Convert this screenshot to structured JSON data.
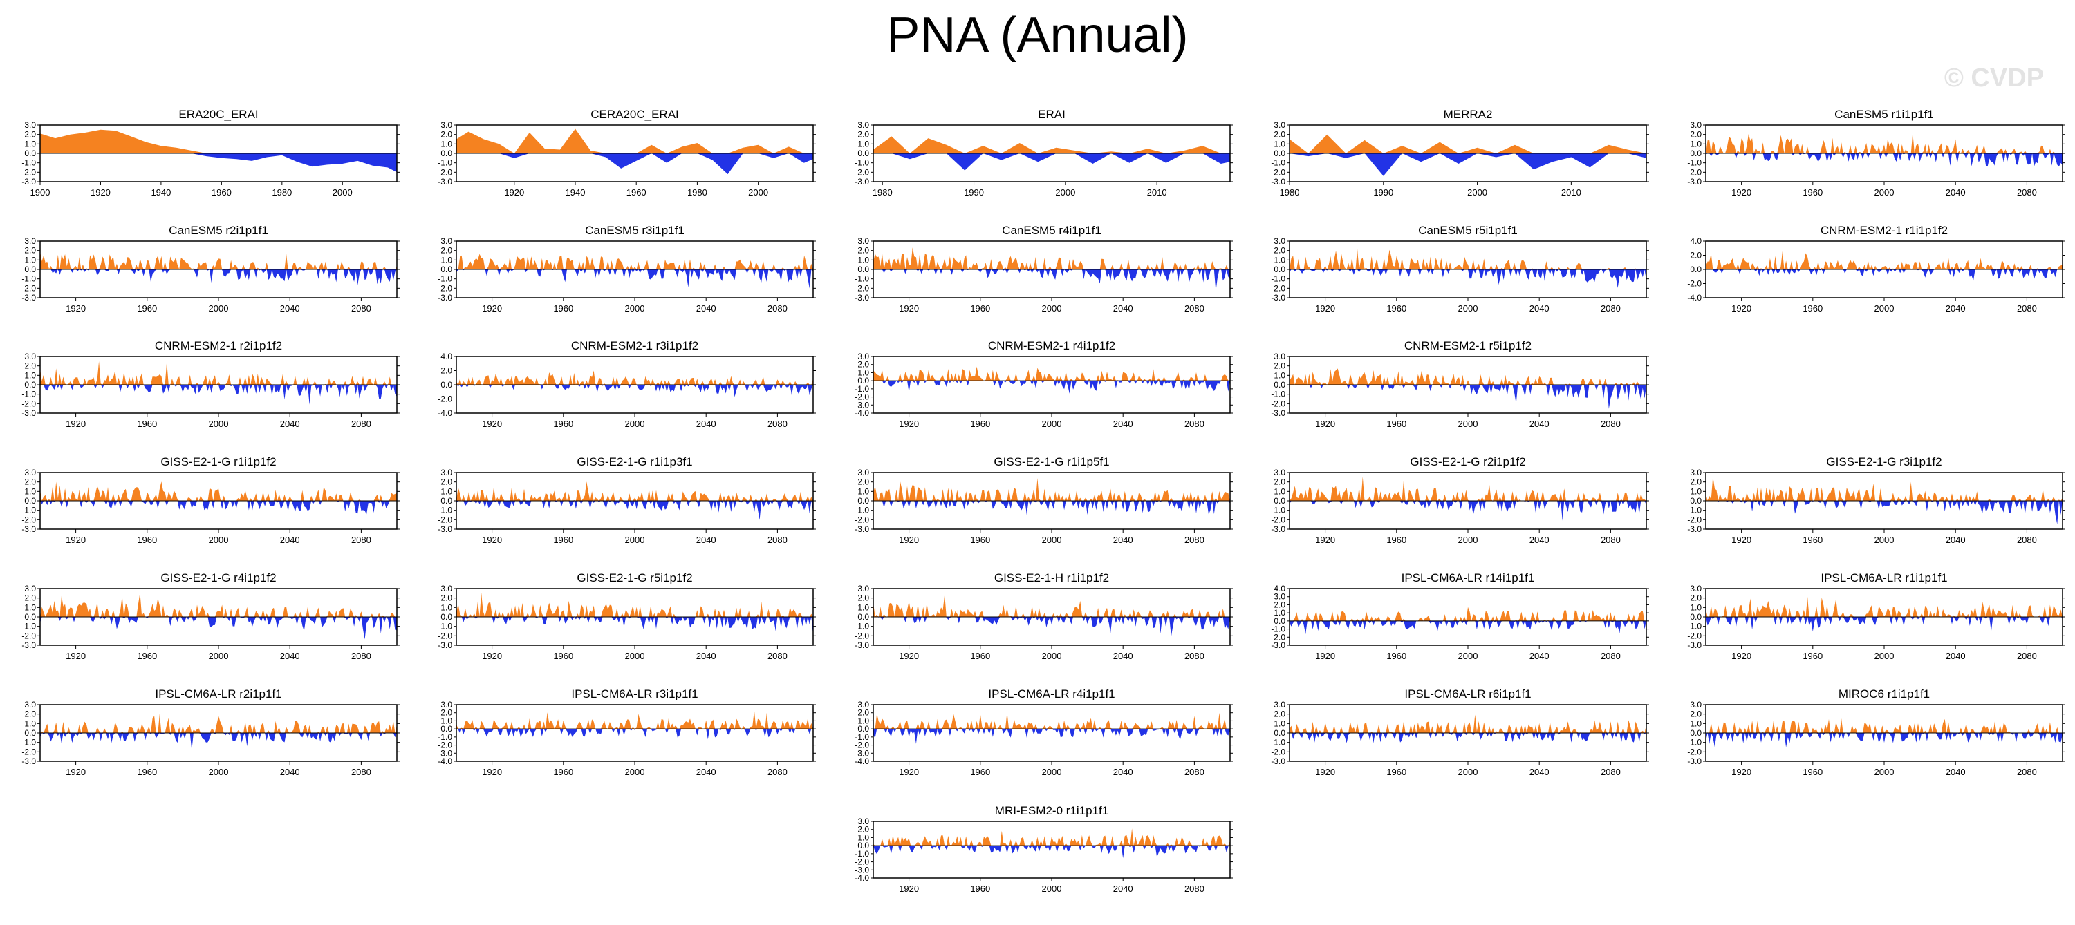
{
  "page": {
    "title": "PNA (Annual)",
    "watermark": "© CVDP"
  },
  "colors": {
    "positive": "#f58220",
    "negative": "#2233e6"
  },
  "chart_data": [
    {
      "type": "area",
      "title": "ERA20C_ERAI",
      "x_range": [
        1900,
        2018
      ],
      "ylim": [
        -3,
        3
      ],
      "yticks": [
        "3.0",
        "2.0",
        "1.0",
        "0.0",
        "-1.0",
        "-2.0",
        "-3.0"
      ],
      "xticks": [
        "1900",
        "1920",
        "1940",
        "1960",
        "1980",
        "2000"
      ],
      "x": [
        1900,
        1905,
        1910,
        1915,
        1920,
        1925,
        1930,
        1935,
        1940,
        1945,
        1950,
        1955,
        1960,
        1965,
        1970,
        1975,
        1980,
        1985,
        1990,
        1995,
        2000,
        2005,
        2010,
        2015,
        2018
      ],
      "values": [
        2.1,
        1.6,
        2.0,
        2.2,
        2.5,
        2.4,
        1.8,
        1.2,
        0.8,
        0.6,
        0.3,
        -0.3,
        -0.5,
        -0.6,
        -0.8,
        -0.4,
        -0.2,
        -0.9,
        -1.4,
        -1.2,
        -1.1,
        -0.8,
        -1.3,
        -1.5,
        -2.0
      ]
    },
    {
      "type": "area",
      "title": "CERA20C_ERAI",
      "x_range": [
        1901,
        2018
      ],
      "ylim": [
        -3,
        3
      ],
      "yticks": [
        "3.0",
        "2.0",
        "1.0",
        "0.0",
        "-1.0",
        "-2.0",
        "-3.0"
      ],
      "xticks": [
        "1920",
        "1940",
        "1960",
        "1980",
        "2000"
      ],
      "x": [
        1901,
        1905,
        1910,
        1915,
        1920,
        1925,
        1930,
        1935,
        1940,
        1945,
        1950,
        1955,
        1960,
        1965,
        1970,
        1975,
        1980,
        1985,
        1990,
        1995,
        2000,
        2005,
        2010,
        2015,
        2018
      ],
      "values": [
        1.5,
        2.3,
        1.5,
        1.0,
        -0.5,
        2.2,
        0.5,
        0.4,
        2.6,
        0.3,
        -0.4,
        -1.6,
        -0.8,
        0.9,
        -1.0,
        0.7,
        1.1,
        -0.7,
        -2.2,
        0.6,
        0.9,
        -0.5,
        0.7,
        -1.0,
        -0.6
      ]
    },
    {
      "type": "area",
      "title": "ERAI",
      "x_range": [
        1979,
        2018
      ],
      "ylim": [
        -3,
        3
      ],
      "yticks": [
        "3.0",
        "2.0",
        "1.0",
        "0.0",
        "-1.0",
        "-2.0",
        "-3.0"
      ],
      "xticks": [
        "1980",
        "1990",
        "2000",
        "2010"
      ],
      "x": [
        1979,
        1981,
        1983,
        1985,
        1987,
        1989,
        1991,
        1993,
        1995,
        1997,
        1999,
        2001,
        2003,
        2005,
        2007,
        2009,
        2011,
        2013,
        2015,
        2017,
        2018
      ],
      "values": [
        0.4,
        1.8,
        -0.6,
        1.6,
        0.9,
        -1.8,
        0.8,
        -0.7,
        1.1,
        -0.9,
        0.6,
        0.3,
        -1.1,
        0.2,
        -1.0,
        0.5,
        -1.0,
        0.3,
        0.8,
        -1.1,
        -0.9
      ]
    },
    {
      "type": "area",
      "title": "MERRA2",
      "x_range": [
        1980,
        2018
      ],
      "ylim": [
        -3,
        3
      ],
      "yticks": [
        "3.0",
        "2.0",
        "1.0",
        "0.0",
        "-1.0",
        "-2.0",
        "-3.0"
      ],
      "xticks": [
        "1980",
        "1990",
        "2000",
        "2010"
      ],
      "x": [
        1980,
        1982,
        1984,
        1986,
        1988,
        1990,
        1992,
        1994,
        1996,
        1998,
        2000,
        2002,
        2004,
        2006,
        2008,
        2010,
        2012,
        2014,
        2016,
        2018
      ],
      "values": [
        1.5,
        -0.3,
        2.0,
        -0.5,
        1.4,
        -2.4,
        0.8,
        -0.9,
        1.2,
        -1.1,
        0.6,
        -0.4,
        0.9,
        -1.7,
        -0.9,
        -0.4,
        -1.5,
        0.9,
        0.4,
        -0.5
      ]
    },
    {
      "type": "area",
      "title": "CanESM5 r1i1p1f1",
      "x_range": [
        1900,
        2100
      ],
      "ylim": [
        -3,
        3
      ],
      "yticks": [
        "3.0",
        "2.0",
        "1.0",
        "0.0",
        "-1.0",
        "-2.0",
        "-3.0"
      ],
      "xticks": [
        "1920",
        "1960",
        "2000",
        "2040",
        "2080"
      ],
      "amp": 1.6,
      "trend": -0.8,
      "seed": 5
    },
    {
      "type": "area",
      "title": "CanESM5 r2i1p1f1",
      "x_range": [
        1900,
        2100
      ],
      "ylim": [
        -3,
        3
      ],
      "yticks": [
        "3.0",
        "2.0",
        "1.0",
        "0.0",
        "-1.0",
        "-2.0",
        "-3.0"
      ],
      "xticks": [
        "1920",
        "1960",
        "2000",
        "2040",
        "2080"
      ],
      "amp": 1.5,
      "trend": -0.9,
      "seed": 6
    },
    {
      "type": "area",
      "title": "CanESM5 r3i1p1f1",
      "x_range": [
        1900,
        2100
      ],
      "ylim": [
        -3,
        3
      ],
      "yticks": [
        "3.0",
        "2.0",
        "1.0",
        "0.0",
        "-1.0",
        "-2.0",
        "-3.0"
      ],
      "xticks": [
        "1920",
        "1960",
        "2000",
        "2040",
        "2080"
      ],
      "amp": 1.5,
      "trend": -0.7,
      "seed": 7
    },
    {
      "type": "area",
      "title": "CanESM5 r4i1p1f1",
      "x_range": [
        1900,
        2100
      ],
      "ylim": [
        -3,
        3
      ],
      "yticks": [
        "3.0",
        "2.0",
        "1.0",
        "0.0",
        "-1.0",
        "-2.0",
        "-3.0"
      ],
      "xticks": [
        "1920",
        "1960",
        "2000",
        "2040",
        "2080"
      ],
      "amp": 1.5,
      "trend": -0.8,
      "seed": 8
    },
    {
      "type": "area",
      "title": "CanESM5 r5i1p1f1",
      "x_range": [
        1900,
        2100
      ],
      "ylim": [
        -3,
        3
      ],
      "yticks": [
        "3.0",
        "2.0",
        "1.0",
        "0.0",
        "-1.0",
        "-2.0",
        "-3.0"
      ],
      "xticks": [
        "1920",
        "1960",
        "2000",
        "2040",
        "2080"
      ],
      "amp": 1.4,
      "trend": -1.0,
      "seed": 9
    },
    {
      "type": "area",
      "title": "CNRM-ESM2-1 r1i1p1f2",
      "x_range": [
        1900,
        2100
      ],
      "ylim": [
        -4,
        4
      ],
      "yticks": [
        "4.0",
        "2.0",
        "0.0",
        "-2.0",
        "-4.0"
      ],
      "xticks": [
        "1920",
        "1960",
        "2000",
        "2040",
        "2080"
      ],
      "amp": 1.5,
      "trend": -0.7,
      "seed": 10
    },
    {
      "type": "area",
      "title": "CNRM-ESM2-1 r2i1p1f2",
      "x_range": [
        1900,
        2100
      ],
      "ylim": [
        -3,
        3
      ],
      "yticks": [
        "3.0",
        "2.0",
        "1.0",
        "0.0",
        "-1.0",
        "-2.0",
        "-3.0"
      ],
      "xticks": [
        "1920",
        "1960",
        "2000",
        "2040",
        "2080"
      ],
      "amp": 1.5,
      "trend": -0.8,
      "seed": 11
    },
    {
      "type": "area",
      "title": "CNRM-ESM2-1 r3i1p1f2",
      "x_range": [
        1900,
        2100
      ],
      "ylim": [
        -4,
        4
      ],
      "yticks": [
        "4.0",
        "2.0",
        "0.0",
        "-2.0",
        "-4.0"
      ],
      "xticks": [
        "1920",
        "1960",
        "2000",
        "2040",
        "2080"
      ],
      "amp": 1.4,
      "trend": -1.0,
      "seed": 12
    },
    {
      "type": "area",
      "title": "CNRM-ESM2-1 r4i1p1f2",
      "x_range": [
        1900,
        2100
      ],
      "ylim": [
        -4,
        3
      ],
      "yticks": [
        "3.0",
        "2.0",
        "1.0",
        "0.0",
        "-1.0",
        "-2.0",
        "-3.0",
        "-4.0"
      ],
      "xticks": [
        "1920",
        "1960",
        "2000",
        "2040",
        "2080"
      ],
      "amp": 1.5,
      "trend": -0.5,
      "seed": 13
    },
    {
      "type": "area",
      "title": "CNRM-ESM2-1 r5i1p1f2",
      "x_range": [
        1900,
        2100
      ],
      "ylim": [
        -3,
        3
      ],
      "yticks": [
        "3.0",
        "2.0",
        "1.0",
        "0.0",
        "-1.0",
        "-2.0",
        "-3.0"
      ],
      "xticks": [
        "1920",
        "1960",
        "2000",
        "2040",
        "2080"
      ],
      "amp": 1.4,
      "trend": -1.3,
      "seed": 14
    },
    {
      "type": "area",
      "title": "GISS-E2-1-G r1i1p1f2",
      "x_range": [
        1900,
        2100
      ],
      "ylim": [
        -3,
        3
      ],
      "yticks": [
        "3.0",
        "2.0",
        "1.0",
        "0.0",
        "-1.0",
        "-2.0",
        "-3.0"
      ],
      "xticks": [
        "1920",
        "1960",
        "2000",
        "2040",
        "2080"
      ],
      "amp": 1.5,
      "trend": -0.7,
      "seed": 15
    },
    {
      "type": "area",
      "title": "GISS-E2-1-G r1i1p3f1",
      "x_range": [
        1900,
        2100
      ],
      "ylim": [
        -3,
        3
      ],
      "yticks": [
        "3.0",
        "2.0",
        "1.0",
        "0.0",
        "-1.0",
        "-2.0",
        "-3.0"
      ],
      "xticks": [
        "1920",
        "1960",
        "2000",
        "2040",
        "2080"
      ],
      "amp": 1.5,
      "trend": -0.6,
      "seed": 16
    },
    {
      "type": "area",
      "title": "GISS-E2-1-G r1i1p5f1",
      "x_range": [
        1900,
        2100
      ],
      "ylim": [
        -3,
        3
      ],
      "yticks": [
        "3.0",
        "2.0",
        "1.0",
        "0.0",
        "-1.0",
        "-2.0",
        "-3.0"
      ],
      "xticks": [
        "1920",
        "1960",
        "2000",
        "2040",
        "2080"
      ],
      "amp": 1.6,
      "trend": -0.6,
      "seed": 17
    },
    {
      "type": "area",
      "title": "GISS-E2-1-G r2i1p1f2",
      "x_range": [
        1900,
        2100
      ],
      "ylim": [
        -3,
        3
      ],
      "yticks": [
        "3.0",
        "2.0",
        "1.0",
        "0.0",
        "-1.0",
        "-2.0",
        "-3.0"
      ],
      "xticks": [
        "1920",
        "1960",
        "2000",
        "2040",
        "2080"
      ],
      "amp": 1.5,
      "trend": -0.8,
      "seed": 18
    },
    {
      "type": "area",
      "title": "GISS-E2-1-G r3i1p1f2",
      "x_range": [
        1900,
        2100
      ],
      "ylim": [
        -3,
        3
      ],
      "yticks": [
        "3.0",
        "2.0",
        "1.0",
        "0.0",
        "-1.0",
        "-2.0",
        "-3.0"
      ],
      "xticks": [
        "1920",
        "1960",
        "2000",
        "2040",
        "2080"
      ],
      "amp": 1.5,
      "trend": -0.8,
      "seed": 19
    },
    {
      "type": "area",
      "title": "GISS-E2-1-G r4i1p1f2",
      "x_range": [
        1900,
        2100
      ],
      "ylim": [
        -3,
        3
      ],
      "yticks": [
        "3.0",
        "2.0",
        "1.0",
        "0.0",
        "-1.0",
        "-2.0",
        "-3.0"
      ],
      "xticks": [
        "1920",
        "1960",
        "2000",
        "2040",
        "2080"
      ],
      "amp": 1.5,
      "trend": -0.7,
      "seed": 20
    },
    {
      "type": "area",
      "title": "GISS-E2-1-G r5i1p1f2",
      "x_range": [
        1900,
        2100
      ],
      "ylim": [
        -3,
        3
      ],
      "yticks": [
        "3.0",
        "2.0",
        "1.0",
        "0.0",
        "-1.0",
        "-2.0",
        "-3.0"
      ],
      "xticks": [
        "1920",
        "1960",
        "2000",
        "2040",
        "2080"
      ],
      "amp": 1.5,
      "trend": -0.7,
      "seed": 21
    },
    {
      "type": "area",
      "title": "GISS-E2-1-H r1i1p1f2",
      "x_range": [
        1900,
        2100
      ],
      "ylim": [
        -3,
        3
      ],
      "yticks": [
        "3.0",
        "2.0",
        "1.0",
        "0.0",
        "-1.0",
        "-2.0",
        "-3.0"
      ],
      "xticks": [
        "1920",
        "1960",
        "2000",
        "2040",
        "2080"
      ],
      "amp": 1.4,
      "trend": -0.7,
      "seed": 22
    },
    {
      "type": "area",
      "title": "IPSL-CM6A-LR r14i1p1f1",
      "x_range": [
        1900,
        2100
      ],
      "ylim": [
        -3,
        4
      ],
      "yticks": [
        "4.0",
        "3.0",
        "2.0",
        "1.0",
        "0.0",
        "-1.0",
        "-2.0",
        "-3.0"
      ],
      "xticks": [
        "1920",
        "1960",
        "2000",
        "2040",
        "2080"
      ],
      "amp": 1.5,
      "trend": 0.1,
      "seed": 23
    },
    {
      "type": "area",
      "title": "IPSL-CM6A-LR r1i1p1f1",
      "x_range": [
        1900,
        2100
      ],
      "ylim": [
        -3,
        3
      ],
      "yticks": [
        "3.0",
        "2.0",
        "1.0",
        "0.0",
        "-1.0",
        "-2.0",
        "-3.0"
      ],
      "xticks": [
        "1920",
        "1960",
        "2000",
        "2040",
        "2080"
      ],
      "amp": 1.5,
      "trend": 0.1,
      "seed": 24
    },
    {
      "type": "area",
      "title": "IPSL-CM6A-LR r2i1p1f1",
      "x_range": [
        1900,
        2100
      ],
      "ylim": [
        -3,
        3
      ],
      "yticks": [
        "3.0",
        "2.0",
        "1.0",
        "0.0",
        "-1.0",
        "-2.0",
        "-3.0"
      ],
      "xticks": [
        "1920",
        "1960",
        "2000",
        "2040",
        "2080"
      ],
      "amp": 1.5,
      "trend": 0.1,
      "seed": 25
    },
    {
      "type": "area",
      "title": "IPSL-CM6A-LR r3i1p1f1",
      "x_range": [
        1900,
        2100
      ],
      "ylim": [
        -4,
        3
      ],
      "yticks": [
        "3.0",
        "2.0",
        "1.0",
        "0.0",
        "-1.0",
        "-2.0",
        "-3.0",
        "-4.0"
      ],
      "xticks": [
        "1920",
        "1960",
        "2000",
        "2040",
        "2080"
      ],
      "amp": 1.5,
      "trend": 0.1,
      "seed": 26
    },
    {
      "type": "area",
      "title": "IPSL-CM6A-LR r4i1p1f1",
      "x_range": [
        1900,
        2100
      ],
      "ylim": [
        -4,
        3
      ],
      "yticks": [
        "3.0",
        "2.0",
        "1.0",
        "0.0",
        "-1.0",
        "-2.0",
        "-3.0",
        "-4.0"
      ],
      "xticks": [
        "1920",
        "1960",
        "2000",
        "2040",
        "2080"
      ],
      "amp": 1.5,
      "trend": 0.1,
      "seed": 27
    },
    {
      "type": "area",
      "title": "IPSL-CM6A-LR r6i1p1f1",
      "x_range": [
        1900,
        2100
      ],
      "ylim": [
        -3,
        3
      ],
      "yticks": [
        "3.0",
        "2.0",
        "1.0",
        "0.0",
        "-1.0",
        "-2.0",
        "-3.0"
      ],
      "xticks": [
        "1920",
        "1960",
        "2000",
        "2040",
        "2080"
      ],
      "amp": 1.5,
      "trend": 0.1,
      "seed": 28
    },
    {
      "type": "area",
      "title": "MIROC6 r1i1p1f1",
      "x_range": [
        1900,
        2100
      ],
      "ylim": [
        -3,
        3
      ],
      "yticks": [
        "3.0",
        "2.0",
        "1.0",
        "0.0",
        "-1.0",
        "-2.0",
        "-3.0"
      ],
      "xticks": [
        "1920",
        "1960",
        "2000",
        "2040",
        "2080"
      ],
      "amp": 1.5,
      "trend": 0.0,
      "seed": 29
    },
    {
      "type": "area",
      "title": "MRI-ESM2-0 r1i1p1f1",
      "x_range": [
        1900,
        2100
      ],
      "ylim": [
        -4,
        3
      ],
      "yticks": [
        "3.0",
        "2.0",
        "1.0",
        "0.0",
        "-1.0",
        "-2.0",
        "-3.0",
        "-4.0"
      ],
      "xticks": [
        "1920",
        "1960",
        "2000",
        "2040",
        "2080"
      ],
      "amp": 1.5,
      "trend": 0.0,
      "seed": 30
    }
  ]
}
